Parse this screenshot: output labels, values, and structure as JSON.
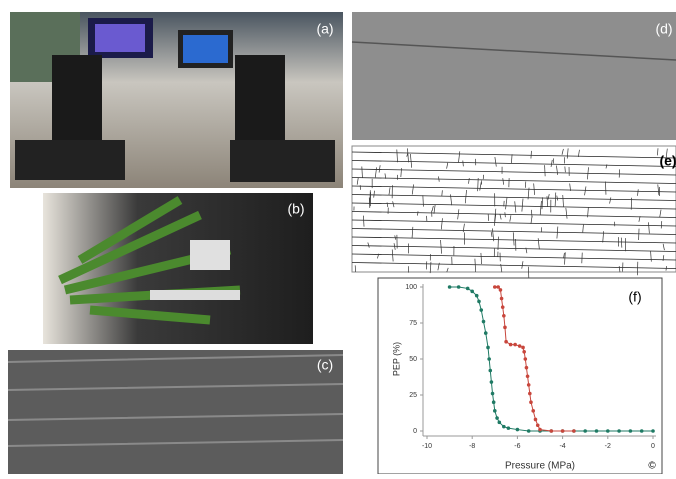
{
  "panels": {
    "a": "(a)",
    "b": "(b)",
    "c": "(c)",
    "d": "(d)",
    "e": "(e)"
  },
  "corner_mark": "©",
  "chart_data": {
    "type": "line",
    "panel_label": "(f)",
    "xlabel": "Pressure (MPa)",
    "ylabel": "PEP (%)",
    "xlim": [
      -10,
      0
    ],
    "xticks": [
      -10,
      -8,
      -6,
      -4,
      -2,
      0
    ],
    "ylim": [
      0,
      100
    ],
    "yticks": [
      0,
      25,
      50,
      75,
      100
    ],
    "series": [
      {
        "color": "#1f7a64",
        "x": [
          -9,
          -8.6,
          -8.2,
          -8,
          -7.8,
          -7.7,
          -7.6,
          -7.5,
          -7.4,
          -7.3,
          -7.25,
          -7.2,
          -7.15,
          -7.1,
          -7.05,
          -7,
          -6.9,
          -6.8,
          -6.6,
          -6.4,
          -6,
          -5.5,
          -5,
          -4.5,
          -4,
          -3.5,
          -3,
          -2.5,
          -2,
          -1.5,
          -1,
          -0.5,
          0
        ],
        "values": [
          100,
          100,
          99,
          97,
          94,
          90,
          84,
          76,
          68,
          58,
          50,
          42,
          34,
          26,
          20,
          14,
          9,
          6,
          3,
          2,
          1,
          0,
          0,
          0,
          0,
          0,
          0,
          0,
          0,
          0,
          0,
          0,
          0
        ]
      },
      {
        "color": "#c8463c",
        "x": [
          -7,
          -6.85,
          -6.75,
          -6.7,
          -6.65,
          -6.6,
          -6.55,
          -6.5,
          -6.3,
          -6.1,
          -5.9,
          -5.75,
          -5.7,
          -5.65,
          -5.6,
          -5.55,
          -5.5,
          -5.45,
          -5.4,
          -5.3,
          -5.2,
          -5.1,
          -5,
          -4.5,
          -4,
          -3.5
        ],
        "values": [
          100,
          100,
          98,
          92,
          86,
          80,
          72,
          62,
          60,
          60,
          59,
          58,
          55,
          50,
          44,
          38,
          32,
          26,
          20,
          14,
          8,
          4,
          1,
          0,
          0,
          0
        ]
      }
    ]
  }
}
